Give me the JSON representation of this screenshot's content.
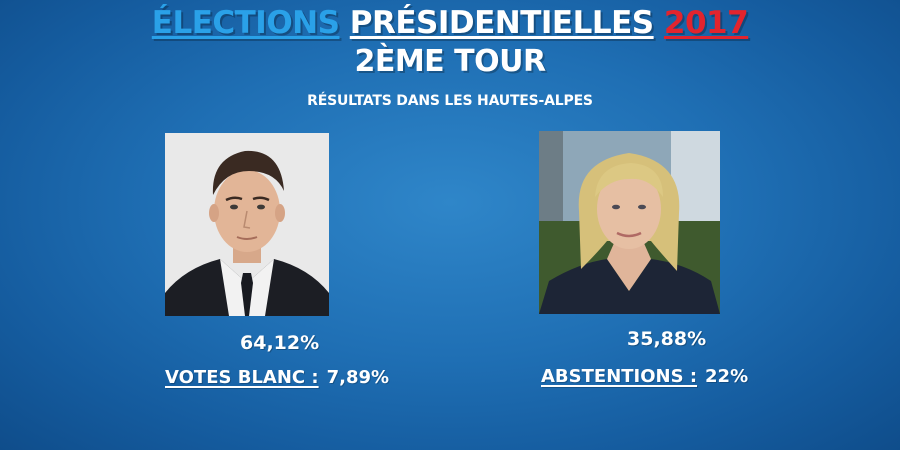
{
  "header": {
    "title_word1": "ÉLECTIONS",
    "title_word2": "PRÉSIDENTIELLES",
    "title_word3": "2017",
    "round": "2ÈME TOUR",
    "subtitle": "RÉSULTATS DANS LES HAUTES-ALPES"
  },
  "colors": {
    "background": "#1f6fb4",
    "title_word1": "#2aa1e8",
    "title_word3": "#e2242e"
  },
  "candidates": [
    {
      "percentage": "64,12%"
    },
    {
      "percentage": "35,88%"
    }
  ],
  "stats": {
    "blank_label": "VOTES BLANC :",
    "blank_value": "7,89%",
    "abstention_label": "ABSTENTIONS :",
    "abstention_value": "22%"
  }
}
